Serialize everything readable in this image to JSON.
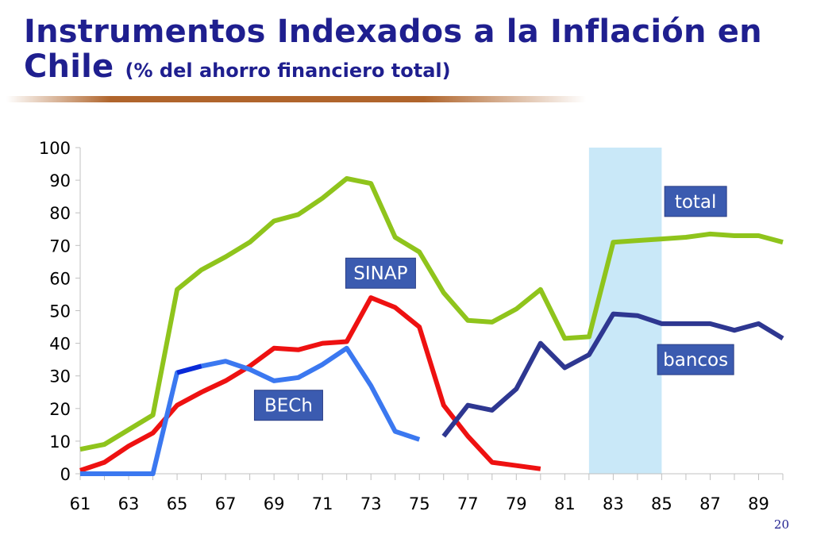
{
  "slide": {
    "title_main": "Instrumentos Indexados a la Inflación en Chile",
    "title_sub": "(% del ahorro financiero total)",
    "page_number": "20"
  },
  "colors": {
    "title": "#1f1f8f",
    "title_rule": "#b0652c",
    "total": "#8fc41c",
    "sinap": "#ee1111",
    "bech": "#3b78f0",
    "bech_alt": "#0a2ad8",
    "bancos": "#2e3791",
    "highlight_band": "#c9e8f8",
    "label_box_bg": "#3b5bb0",
    "label_box_text": "#ffffff",
    "axis": "#c0c0c0"
  },
  "chart_data": {
    "type": "line",
    "title": "Instrumentos Indexados a la Inflación en Chile (% del ahorro financiero total)",
    "xlabel": "",
    "ylabel": "",
    "xlim": [
      61,
      90
    ],
    "ylim": [
      0,
      100
    ],
    "x_ticks": [
      "61",
      "63",
      "65",
      "67",
      "69",
      "71",
      "73",
      "75",
      "77",
      "79",
      "81",
      "83",
      "85",
      "87",
      "89"
    ],
    "y_ticks": [
      "0",
      "10",
      "20",
      "30",
      "40",
      "50",
      "60",
      "70",
      "80",
      "90",
      "100"
    ],
    "grid": false,
    "highlight_band": {
      "x_start": 82,
      "x_end": 85
    },
    "series": [
      {
        "name": "total",
        "color": "#8fc41c",
        "points": [
          [
            61,
            7.5
          ],
          [
            62,
            9
          ],
          [
            63,
            13.5
          ],
          [
            64,
            18
          ],
          [
            65,
            56.5
          ],
          [
            66,
            62.5
          ],
          [
            67,
            66.5
          ],
          [
            68,
            71
          ],
          [
            69,
            77.5
          ],
          [
            70,
            79.5
          ],
          [
            71,
            84.5
          ],
          [
            72,
            90.5
          ],
          [
            73,
            89
          ],
          [
            74,
            72.5
          ],
          [
            75,
            68
          ],
          [
            76,
            55.5
          ],
          [
            77,
            47
          ],
          [
            78,
            46.5
          ],
          [
            79,
            50.5
          ],
          [
            80,
            56.5
          ],
          [
            81,
            41.5
          ],
          [
            82,
            42
          ],
          [
            83,
            71
          ],
          [
            84,
            71.5
          ],
          [
            85,
            72
          ],
          [
            86,
            72.5
          ],
          [
            87,
            73.5
          ],
          [
            88,
            73
          ],
          [
            89,
            73
          ],
          [
            90,
            71
          ]
        ]
      },
      {
        "name": "SINAP",
        "color": "#ee1111",
        "points": [
          [
            61,
            1
          ],
          [
            62,
            3.5
          ],
          [
            63,
            8.5
          ],
          [
            64,
            12.5
          ],
          [
            65,
            21
          ],
          [
            66,
            25
          ],
          [
            67,
            28.5
          ],
          [
            68,
            33
          ],
          [
            69,
            38.5
          ],
          [
            70,
            38
          ],
          [
            71,
            40
          ],
          [
            72,
            40.5
          ],
          [
            73,
            54
          ],
          [
            74,
            51
          ],
          [
            75,
            45
          ],
          [
            76,
            21
          ],
          [
            77,
            11.5
          ],
          [
            78,
            3.5
          ],
          [
            79,
            2.5
          ],
          [
            80,
            1.5
          ]
        ]
      },
      {
        "name": "BECh",
        "color": "#3b78f0",
        "points": [
          [
            61,
            0
          ],
          [
            62,
            0
          ],
          [
            63,
            0
          ],
          [
            64,
            0
          ],
          [
            65,
            31
          ],
          [
            66,
            33
          ],
          [
            67,
            34.5
          ],
          [
            68,
            32
          ],
          [
            69,
            28.5
          ],
          [
            70,
            29.5
          ],
          [
            71,
            33.5
          ],
          [
            72,
            38.5
          ],
          [
            73,
            27
          ],
          [
            74,
            13
          ],
          [
            75,
            10.5
          ]
        ]
      },
      {
        "name": "bancos",
        "color": "#2e3791",
        "points": [
          [
            76,
            11.5
          ],
          [
            77,
            21
          ],
          [
            78,
            19.5
          ],
          [
            79,
            26
          ],
          [
            80,
            40
          ],
          [
            81,
            32.5
          ],
          [
            82,
            36.5
          ],
          [
            83,
            49
          ],
          [
            84,
            48.5
          ],
          [
            85,
            46
          ],
          [
            86,
            46
          ],
          [
            87,
            46
          ],
          [
            88,
            44
          ],
          [
            89,
            46
          ],
          [
            90,
            41.5
          ]
        ]
      }
    ],
    "annotations": [
      {
        "text": "total",
        "series": "total"
      },
      {
        "text": "SINAP",
        "series": "SINAP"
      },
      {
        "text": "BECh",
        "series": "BECh"
      },
      {
        "text": "bancos",
        "series": "bancos"
      }
    ]
  }
}
